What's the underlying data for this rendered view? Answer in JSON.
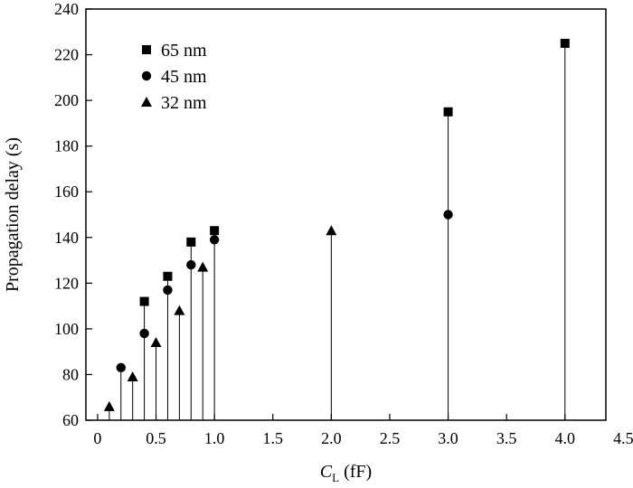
{
  "chart_data": {
    "type": "scatter",
    "style": "stem",
    "xlabel_main": "C",
    "xlabel_sub": "L",
    "xlabel_unit": " (fF)",
    "ylabel": "Propagation delay (s)",
    "xlim": [
      -0.1,
      4.35
    ],
    "ylim": [
      60,
      240
    ],
    "xticks": [
      0,
      0.5,
      1.0,
      1.5,
      2.0,
      2.5,
      3.0,
      3.5,
      4.0,
      4.5
    ],
    "xtick_labels": [
      "0",
      "0.5",
      "1.0",
      "1.5",
      "2.0",
      "2.5",
      "3.0",
      "3.5",
      "4.0",
      "4.5"
    ],
    "yticks": [
      60,
      80,
      100,
      120,
      140,
      160,
      180,
      200,
      220,
      240
    ],
    "ytick_labels": [
      "60",
      "80",
      "100",
      "120",
      "140",
      "160",
      "180",
      "200",
      "220",
      "240"
    ],
    "grid": false,
    "legend_position": "top-left",
    "series": [
      {
        "name": "65 nm",
        "marker": "square",
        "x": [
          0.4,
          0.6,
          0.8,
          1.0,
          3.0,
          4.0
        ],
        "y": [
          112,
          123,
          138,
          143,
          195,
          225
        ]
      },
      {
        "name": "45 nm",
        "marker": "circle",
        "x": [
          0.2,
          0.4,
          0.6,
          0.8,
          1.0,
          3.0
        ],
        "y": [
          83,
          98,
          117,
          128,
          139,
          150
        ]
      },
      {
        "name": "32 nm",
        "marker": "triangle",
        "x": [
          0.1,
          0.3,
          0.5,
          0.7,
          0.9,
          2.0
        ],
        "y": [
          66,
          79,
          94,
          108,
          127,
          143
        ]
      }
    ]
  }
}
